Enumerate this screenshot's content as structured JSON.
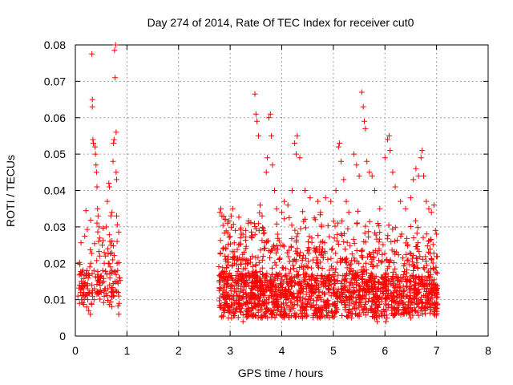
{
  "chart_data": {
    "type": "scatter",
    "title": "Day 274 of 2014, Rate Of TEC Index for receiver cut0",
    "xlabel": "GPS time / hours",
    "ylabel": "ROTI / TECUs",
    "xlim": [
      0,
      8
    ],
    "ylim": [
      0,
      0.08
    ],
    "xticks": [
      0,
      1,
      2,
      3,
      4,
      5,
      6,
      7,
      8
    ],
    "yticks": [
      0,
      0.01,
      0.02,
      0.03,
      0.04,
      0.05,
      0.06,
      0.07,
      0.08
    ],
    "xtick_labels": [
      "0",
      "1",
      "2",
      "3",
      "4",
      "5",
      "6",
      "7",
      "8"
    ],
    "ytick_labels": [
      "0",
      "0.01",
      "0.02",
      "0.03",
      "0.04",
      "0.05",
      "0.06",
      "0.07",
      "0.08"
    ],
    "grid": true,
    "marker": "+",
    "color": "#ff0000",
    "series": [
      {
        "name": "ROTI",
        "points": [
          [
            0.05,
            0.011
          ],
          [
            0.08,
            0.009
          ],
          [
            0.1,
            0.012
          ],
          [
            0.12,
            0.01
          ],
          [
            0.14,
            0.013
          ],
          [
            0.16,
            0.012
          ],
          [
            0.18,
            0.014
          ],
          [
            0.2,
            0.011
          ],
          [
            0.22,
            0.008
          ],
          [
            0.24,
            0.01
          ],
          [
            0.25,
            0.016
          ],
          [
            0.26,
            0.007
          ],
          [
            0.27,
            0.012
          ],
          [
            0.28,
            0.019
          ],
          [
            0.29,
            0.006
          ],
          [
            0.3,
            0.02
          ],
          [
            0.31,
            0.009
          ],
          [
            0.32,
            0.0775
          ],
          [
            0.33,
            0.065
          ],
          [
            0.33,
            0.063
          ],
          [
            0.34,
            0.054
          ],
          [
            0.35,
            0.053
          ],
          [
            0.36,
            0.018
          ],
          [
            0.37,
            0.013
          ],
          [
            0.38,
            0.052
          ],
          [
            0.39,
            0.05
          ],
          [
            0.4,
            0.047
          ],
          [
            0.41,
            0.045
          ],
          [
            0.42,
            0.041
          ],
          [
            0.43,
            0.035
          ],
          [
            0.44,
            0.033
          ],
          [
            0.45,
            0.026
          ],
          [
            0.46,
            0.03
          ],
          [
            0.47,
            0.022
          ],
          [
            0.48,
            0.014
          ],
          [
            0.49,
            0.016
          ],
          [
            0.5,
            0.012
          ],
          [
            0.52,
            0.025
          ],
          [
            0.53,
            0.018
          ],
          [
            0.55,
            0.015
          ],
          [
            0.57,
            0.013
          ],
          [
            0.58,
            0.022
          ],
          [
            0.6,
            0.03
          ],
          [
            0.61,
            0.017
          ],
          [
            0.62,
            0.037
          ],
          [
            0.63,
            0.013
          ],
          [
            0.64,
            0.02
          ],
          [
            0.65,
            0.042
          ],
          [
            0.66,
            0.041
          ],
          [
            0.67,
            0.016
          ],
          [
            0.68,
            0.019
          ],
          [
            0.69,
            0.025
          ],
          [
            0.7,
            0.013
          ],
          [
            0.71,
            0.034
          ],
          [
            0.72,
            0.012
          ],
          [
            0.73,
            0.048
          ],
          [
            0.74,
            0.053
          ],
          [
            0.75,
            0.054
          ],
          [
            0.76,
            0.0785
          ],
          [
            0.77,
            0.071
          ],
          [
            0.78,
            0.08
          ],
          [
            0.79,
            0.056
          ],
          [
            0.79,
            0.045
          ],
          [
            0.8,
            0.043
          ],
          [
            0.8,
            0.033
          ],
          [
            0.81,
            0.026
          ],
          [
            0.81,
            0.02
          ],
          [
            0.82,
            0.018
          ],
          [
            0.83,
            0.012
          ],
          [
            0.84,
            0.006
          ],
          [
            0.85,
            0.009
          ],
          [
            0.86,
            0.016
          ],
          [
            0.36,
            0.01
          ],
          [
            0.42,
            0.012
          ],
          [
            0.47,
            0.015
          ],
          [
            0.56,
            0.02
          ],
          [
            0.63,
            0.024
          ],
          [
            0.71,
            0.018
          ],
          [
            0.77,
            0.015
          ],
          [
            0.84,
            0.011
          ],
          [
            2.8,
            0.034
          ],
          [
            2.82,
            0.035
          ],
          [
            2.84,
            0.033
          ],
          [
            2.86,
            0.024
          ],
          [
            2.9,
            0.022
          ],
          [
            2.95,
            0.031
          ],
          [
            3.02,
            0.033
          ],
          [
            3.05,
            0.035
          ],
          [
            3.1,
            0.029
          ],
          [
            3.2,
            0.027
          ],
          [
            3.3,
            0.029
          ],
          [
            3.35,
            0.031
          ],
          [
            3.42,
            0.027
          ],
          [
            3.48,
            0.0665
          ],
          [
            3.5,
            0.061
          ],
          [
            3.52,
            0.059
          ],
          [
            3.55,
            0.055
          ],
          [
            3.58,
            0.036
          ],
          [
            3.62,
            0.033
          ],
          [
            3.7,
            0.045
          ],
          [
            3.72,
            0.049
          ],
          [
            3.75,
            0.06
          ],
          [
            3.78,
            0.061
          ],
          [
            3.8,
            0.055
          ],
          [
            3.82,
            0.047
          ],
          [
            3.86,
            0.04
          ],
          [
            3.9,
            0.035
          ],
          [
            4.0,
            0.034
          ],
          [
            4.05,
            0.037
          ],
          [
            4.12,
            0.036
          ],
          [
            4.2,
            0.04
          ],
          [
            4.25,
            0.053
          ],
          [
            4.28,
            0.05
          ],
          [
            4.3,
            0.055
          ],
          [
            4.35,
            0.049
          ],
          [
            4.45,
            0.04
          ],
          [
            4.55,
            0.038
          ],
          [
            4.65,
            0.032
          ],
          [
            4.7,
            0.037
          ],
          [
            4.75,
            0.034
          ],
          [
            4.85,
            0.038
          ],
          [
            4.95,
            0.037
          ],
          [
            5.05,
            0.04
          ],
          [
            5.1,
            0.052
          ],
          [
            5.12,
            0.053
          ],
          [
            5.15,
            0.048
          ],
          [
            5.2,
            0.043
          ],
          [
            5.25,
            0.037
          ],
          [
            5.3,
            0.034
          ],
          [
            5.4,
            0.05
          ],
          [
            5.45,
            0.047
          ],
          [
            5.5,
            0.044
          ],
          [
            5.55,
            0.067
          ],
          [
            5.58,
            0.063
          ],
          [
            5.6,
            0.059
          ],
          [
            5.62,
            0.057
          ],
          [
            5.65,
            0.048
          ],
          [
            5.7,
            0.045
          ],
          [
            5.75,
            0.044
          ],
          [
            5.8,
            0.04
          ],
          [
            5.9,
            0.035
          ],
          [
            6.0,
            0.049
          ],
          [
            6.05,
            0.054
          ],
          [
            6.08,
            0.055
          ],
          [
            6.1,
            0.051
          ],
          [
            6.15,
            0.045
          ],
          [
            6.2,
            0.041
          ],
          [
            6.3,
            0.037
          ],
          [
            6.4,
            0.035
          ],
          [
            6.5,
            0.038
          ],
          [
            6.55,
            0.043
          ],
          [
            6.6,
            0.046
          ],
          [
            6.65,
            0.044
          ],
          [
            6.7,
            0.049
          ],
          [
            6.72,
            0.051
          ],
          [
            6.75,
            0.044
          ],
          [
            6.8,
            0.037
          ],
          [
            6.85,
            0.035
          ],
          [
            6.9,
            0.034
          ],
          [
            6.95,
            0.036
          ],
          [
            6.98,
            0.029
          ],
          [
            7.0,
            0.028
          ],
          [
            6.02,
            0.004
          ],
          [
            6.04,
            0.005
          ],
          [
            3.25,
            0.004
          ],
          [
            3.6,
            0.005
          ],
          [
            4.4,
            0.005
          ],
          [
            5.35,
            0.005
          ],
          [
            5.85,
            0.004
          ],
          [
            6.5,
            0.005
          ]
        ]
      }
    ],
    "generated_clusters": [
      {
        "x_from": 0.05,
        "x_to": 0.88,
        "count": 140,
        "y_base": 0.013,
        "y_spread": 0.01,
        "y_tail": 0.018
      },
      {
        "x_from": 2.78,
        "x_to": 6.0,
        "count": 1500,
        "y_base": 0.011,
        "y_spread": 0.012,
        "y_tail": 0.018
      },
      {
        "x_from": 6.0,
        "x_to": 7.02,
        "count": 450,
        "y_base": 0.011,
        "y_spread": 0.011,
        "y_tail": 0.016
      }
    ]
  }
}
